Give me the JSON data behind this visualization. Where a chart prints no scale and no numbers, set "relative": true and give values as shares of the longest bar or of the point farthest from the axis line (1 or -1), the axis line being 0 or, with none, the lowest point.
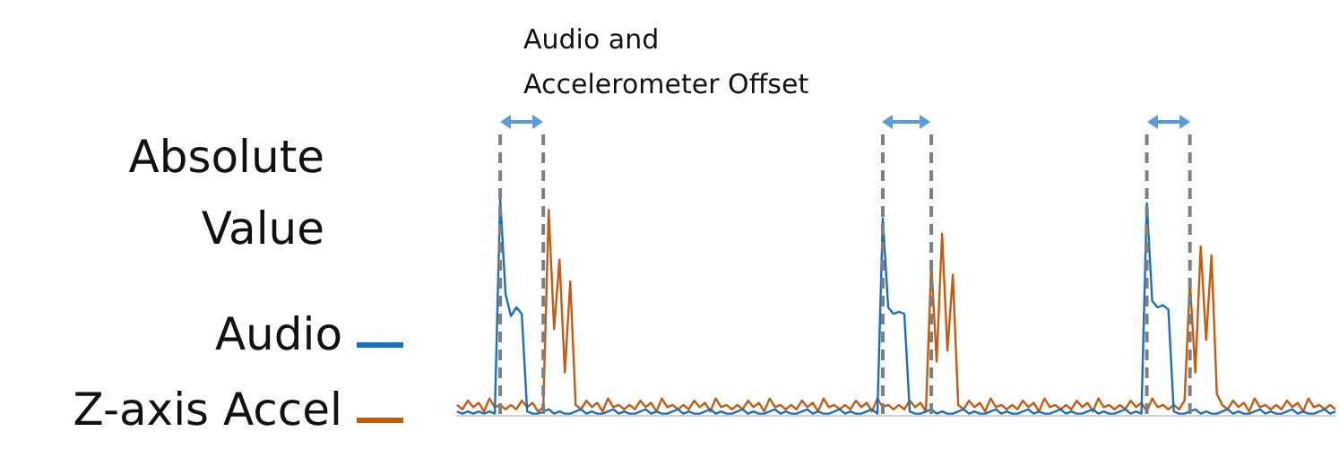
{
  "chart_data": {
    "type": "line",
    "relative": true,
    "ylabel": "Absolute Value",
    "legend": "left",
    "marker": "none",
    "line_style": "solid",
    "grid": false,
    "tick_labels": false,
    "annotations": [
      "Audio and Accelerometer Offset"
    ],
    "categories": [
      null,
      null,
      null,
      null,
      null,
      null,
      null,
      null,
      null,
      null,
      null,
      null,
      null,
      null,
      null,
      null,
      null,
      null,
      null,
      null,
      null,
      null,
      null,
      null,
      null,
      null,
      null,
      null,
      null,
      null,
      null,
      null,
      null,
      null,
      null,
      null,
      null,
      null,
      null,
      null,
      null,
      null,
      null,
      null,
      null,
      null,
      null,
      null,
      null,
      null,
      null,
      null,
      null,
      null,
      null,
      null,
      null,
      null,
      null,
      null,
      null,
      null,
      null,
      null,
      null,
      null,
      null,
      null,
      null,
      null,
      null,
      null,
      null,
      null,
      null,
      null,
      null,
      null,
      null,
      null,
      null,
      null,
      null,
      null,
      null,
      null,
      null,
      null,
      null,
      null,
      null,
      null,
      null,
      null,
      null,
      null,
      null,
      null,
      null,
      null,
      null,
      null,
      null,
      null,
      null,
      null,
      null,
      null,
      null,
      null,
      null,
      null,
      null,
      null,
      null,
      null,
      null,
      null,
      null,
      null,
      null,
      null,
      null,
      null,
      null,
      null,
      null,
      null,
      null,
      null,
      null,
      null,
      null,
      null,
      null,
      null,
      null,
      null,
      null,
      null,
      null,
      null,
      null,
      null,
      null,
      null,
      null,
      null,
      null,
      null,
      null,
      null,
      null,
      null,
      null,
      null,
      null,
      null,
      null,
      null,
      null,
      null,
      null,
      null
    ],
    "series": [
      {
        "name": "Audio",
        "color": "#1a6ec0",
        "values": [
          0.02,
          0.01,
          0.02,
          0.01,
          0.02,
          0.01,
          0.02,
          0.01,
          1,
          0.56,
          0.46,
          0.5,
          0.47,
          0.02,
          0.01,
          0.01,
          0.02,
          0.03,
          0.01,
          0.02,
          0.01,
          0.01,
          0.02,
          0.03,
          0.01,
          0.02,
          0.01,
          0.01,
          0.02,
          0.03,
          0.01,
          0.02,
          0.01,
          0.01,
          0.02,
          0.03,
          0.01,
          0.02,
          0.01,
          0.01,
          0.02,
          0.03,
          0.01,
          0.02,
          0.01,
          0.01,
          0.02,
          0.03,
          0.01,
          0.02,
          0.01,
          0.01,
          0.02,
          0.03,
          0.01,
          0.02,
          0.01,
          0.01,
          0.02,
          0.03,
          0.01,
          0.02,
          0.01,
          0.01,
          0.02,
          0.03,
          0.01,
          0.02,
          0.01,
          0.01,
          0.02,
          0.03,
          0.01,
          0.02,
          0.01,
          0.01,
          0.02,
          0.03,
          0.01,
          0.91,
          0.5,
          0.47,
          0.48,
          0.47,
          0.02,
          0.01,
          0.01,
          0.02,
          0.03,
          0.01,
          0.02,
          0.01,
          0.01,
          0.02,
          0.03,
          0.01,
          0.02,
          0.01,
          0.01,
          0.02,
          0.03,
          0.01,
          0.02,
          0.01,
          0.01,
          0.02,
          0.03,
          0.01,
          0.02,
          0.01,
          0.01,
          0.02,
          0.03,
          0.01,
          0.02,
          0.01,
          0.01,
          0.02,
          0.03,
          0.01,
          0.02,
          0.01,
          0.01,
          0.02,
          0.03,
          0.01,
          0.02,
          0.01,
          0.98,
          0.53,
          0.5,
          0.51,
          0.49,
          0.02,
          0.01,
          0.01,
          0.02,
          0.03,
          0.01,
          0.02,
          0.01,
          0.01,
          0.02,
          0.03,
          0.01,
          0.02,
          0.01,
          0.01,
          0.02,
          0.03,
          0.01,
          0.02,
          0.01,
          0.01,
          0.02,
          0.03,
          0.01,
          0.02,
          0.01,
          0.01,
          0.02,
          0.03,
          0.01,
          0.02
        ]
      },
      {
        "name": "Z-axis Accel",
        "color": "#c55a11",
        "values": [
          0.05,
          0.03,
          0.07,
          0.04,
          0.06,
          0.02,
          0.08,
          0.04,
          0.05,
          0.03,
          0.05,
          0.03,
          0.07,
          0.04,
          0.06,
          0.02,
          0.04,
          0.95,
          0.4,
          0.72,
          0.2,
          0.62,
          0.05,
          0.03,
          0.07,
          0.04,
          0.06,
          0.02,
          0.08,
          0.04,
          0.05,
          0.03,
          0.05,
          0.03,
          0.07,
          0.04,
          0.06,
          0.02,
          0.08,
          0.04,
          0.05,
          0.03,
          0.05,
          0.03,
          0.07,
          0.04,
          0.06,
          0.02,
          0.08,
          0.04,
          0.05,
          0.03,
          0.05,
          0.03,
          0.07,
          0.04,
          0.06,
          0.02,
          0.08,
          0.04,
          0.05,
          0.03,
          0.05,
          0.03,
          0.07,
          0.04,
          0.06,
          0.02,
          0.08,
          0.04,
          0.05,
          0.03,
          0.05,
          0.03,
          0.07,
          0.04,
          0.06,
          0.02,
          0.08,
          0.04,
          0.05,
          0.03,
          0.05,
          0.03,
          0.07,
          0.04,
          0.06,
          0.02,
          0.7,
          0.25,
          0.84,
          0.3,
          0.65,
          0.05,
          0.03,
          0.07,
          0.04,
          0.06,
          0.02,
          0.08,
          0.04,
          0.05,
          0.03,
          0.05,
          0.03,
          0.07,
          0.04,
          0.06,
          0.02,
          0.08,
          0.04,
          0.05,
          0.03,
          0.05,
          0.03,
          0.07,
          0.04,
          0.06,
          0.02,
          0.08,
          0.04,
          0.05,
          0.03,
          0.05,
          0.03,
          0.07,
          0.04,
          0.06,
          0.02,
          0.08,
          0.04,
          0.05,
          0.03,
          0.05,
          0.03,
          0.07,
          0.62,
          0.2,
          0.78,
          0.35,
          0.74,
          0.1,
          0.05,
          0.03,
          0.07,
          0.04,
          0.06,
          0.02,
          0.08,
          0.04,
          0.05,
          0.03,
          0.05,
          0.03,
          0.07,
          0.04,
          0.06,
          0.02,
          0.08,
          0.04,
          0.05,
          0.03,
          0.05,
          0.03
        ]
      }
    ]
  }
}
